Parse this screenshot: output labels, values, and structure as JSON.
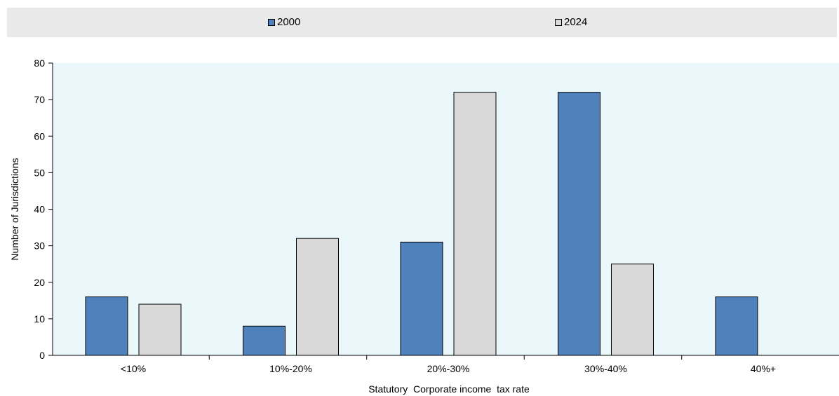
{
  "chart_data": {
    "type": "bar",
    "categories": [
      "<10%",
      "10%-20%",
      "20%-30%",
      "30%-40%",
      "40%+"
    ],
    "series": [
      {
        "name": "2000",
        "values": [
          16,
          8,
          31,
          72,
          16
        ],
        "color": "#4f81bd"
      },
      {
        "name": "2024",
        "values": [
          14,
          32,
          72,
          25,
          0
        ],
        "color": "#d9d9d9"
      }
    ],
    "xlabel": "Statutory  Corporate income  tax rate",
    "ylabel": "Number of Jurisdictions",
    "ylim": [
      0,
      80
    ],
    "yticks": [
      0,
      10,
      20,
      30,
      40,
      50,
      60,
      70,
      80
    ],
    "plot_background": "#eaf7fb",
    "legend_position": "top",
    "grid": false
  }
}
